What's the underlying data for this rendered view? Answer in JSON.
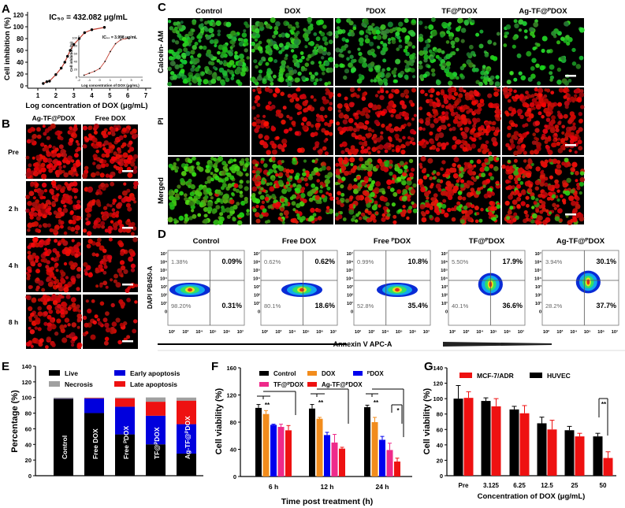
{
  "panel_letters": [
    "A",
    "B",
    "C",
    "D",
    "E",
    "F",
    "G"
  ],
  "microscopy": {
    "B": {
      "columns": [
        "Ag-TF@ᴾDOX",
        "Free DOX"
      ],
      "rows": [
        "Pre",
        "2 h",
        "4 h",
        "8 h"
      ]
    },
    "C": {
      "columns": [
        "Control",
        "DOX",
        "ᴾDOX",
        "TF@ᴾDOX",
        "Ag-TF@ᴾDOX"
      ],
      "rows": [
        "Calcein- AM",
        "PI",
        "Merged"
      ]
    }
  },
  "flow": {
    "xlabel": "Annexin V APC-A",
    "ylabel": "DAPI PB450-A",
    "x_ticks": [
      "10²",
      "10³",
      "10⁴",
      "10⁵",
      "10⁶",
      "10⁷"
    ],
    "y_ticks": [
      "10⁷",
      "10⁶",
      "10⁵",
      "10⁴",
      "10³",
      "10²",
      "10¹",
      "0"
    ],
    "plots": [
      {
        "title": "Control",
        "ul": "1.38%",
        "ur": "0.09%",
        "ll": "98.20%",
        "lr": "0.31%"
      },
      {
        "title": "Free DOX",
        "ul": "0.62%",
        "ur": "0.62%",
        "ll": "80.1%",
        "lr": "18.6%"
      },
      {
        "title": "Free ᴾDOX",
        "ul": "0.99%",
        "ur": "10.8%",
        "ll": "52.8%",
        "lr": "35.4%"
      },
      {
        "title": "TF@ᴾDOX",
        "ul": "5.50%",
        "ur": "17.9%",
        "ll": "40.1%",
        "lr": "36.6%"
      },
      {
        "title": "Ag-TF@ᴾDOX",
        "ul": "3.94%",
        "ur": "30.1%",
        "ll": "28.2%",
        "lr": "37.7%"
      }
    ]
  },
  "chart_data": [
    {
      "id": "A",
      "type": "line",
      "title": "IC₅₀ = 432.082 μg/mL",
      "xlabel": "Log concentration of DOX (μg/mL)",
      "ylabel": "Cell inhibition (%)",
      "xlim": [
        0.5,
        7
      ],
      "ylim": [
        0,
        120
      ],
      "x_ticks": [
        "1",
        "2",
        "3",
        "4",
        "5",
        "6",
        "7"
      ],
      "y_ticks": [
        "0",
        "20",
        "40",
        "60",
        "80",
        "100",
        "120"
      ],
      "x": [
        1.3,
        1.5,
        1.65,
        2.0,
        2.3,
        2.5,
        2.65,
        2.8,
        3.0,
        3.3,
        3.6,
        4.0,
        4.7
      ],
      "y": [
        4,
        7,
        8,
        19,
        30,
        40,
        50,
        60,
        70,
        80,
        90,
        95,
        99
      ],
      "color": "#c0392b",
      "inset": {
        "title": "IC₅₀ = 3.998 μg/mL",
        "xlabel": "Log concentration of DOX (μg/mL)",
        "ylabel": "Cell inhibition (%)",
        "xlim": [
          -2,
          4
        ],
        "ylim": [
          0,
          100
        ],
        "x_ticks": [
          "-2",
          "-1",
          "0",
          "1",
          "2",
          "3",
          "4"
        ],
        "y_ticks": [
          "0",
          "20",
          "40",
          "60",
          "80",
          "100"
        ],
        "x": [
          -1.5,
          -1.0,
          -0.5,
          0.0,
          0.5,
          1.0,
          1.5,
          2.0,
          2.7
        ],
        "y": [
          5,
          10,
          15,
          22,
          40,
          65,
          85,
          95,
          99
        ]
      }
    },
    {
      "id": "E",
      "type": "bar",
      "stacked": true,
      "ylabel": "Percentage (%)",
      "ylim": [
        0,
        140
      ],
      "y_ticks": [
        "0",
        "20",
        "40",
        "60",
        "80",
        "100",
        "120",
        "140"
      ],
      "categories": [
        "Control",
        "Free DOX",
        "Free ᴾDOX",
        "TF@ᴾDOX",
        "Ag-TF@ᴾDOX"
      ],
      "series": [
        {
          "name": "Live",
          "color": "#000000",
          "values": [
            98.2,
            80.1,
            52.8,
            40.1,
            28.2
          ]
        },
        {
          "name": "Early apoptosis",
          "color": "#0000dd",
          "values": [
            0.31,
            18.6,
            35.4,
            36.6,
            37.7
          ]
        },
        {
          "name": "Late apoptosis",
          "color": "#ee1111",
          "values": [
            0.09,
            0.62,
            10.8,
            17.9,
            30.1
          ]
        },
        {
          "name": "Necrosis",
          "color": "#a0a0a0",
          "values": [
            1.38,
            0.62,
            0.99,
            5.5,
            3.94
          ]
        }
      ],
      "legend": "top"
    },
    {
      "id": "F",
      "type": "bar",
      "xlabel": "Time post treatment (h)",
      "ylabel": "Cell viability (%)",
      "ylim": [
        0,
        160
      ],
      "y_ticks": [
        "0",
        "40",
        "80",
        "120",
        "160"
      ],
      "categories": [
        "6 h",
        "12 h",
        "24 h"
      ],
      "series": [
        {
          "name": "Control",
          "color": "#000000",
          "values": [
            101,
            100,
            102
          ],
          "errors": [
            5,
            6,
            3
          ]
        },
        {
          "name": "DOX",
          "color": "#f28c1c",
          "values": [
            92,
            85,
            80
          ],
          "errors": [
            5,
            2,
            7
          ]
        },
        {
          "name": "ᴾDOX",
          "color": "#0000ee",
          "values": [
            76,
            61,
            54
          ],
          "errors": [
            1,
            4,
            5
          ]
        },
        {
          "name": "TF@ᴾDOX",
          "color": "#ee2a8a",
          "values": [
            73,
            50,
            39
          ],
          "errors": [
            4,
            12,
            10
          ]
        },
        {
          "name": "Ag-TF@ᴾDOX",
          "color": "#ee1111",
          "values": [
            68,
            41,
            22
          ],
          "errors": [
            7,
            2,
            5
          ]
        }
      ],
      "significance": [
        "**",
        "**",
        "**",
        "*"
      ],
      "legend": "top"
    },
    {
      "id": "G",
      "type": "bar",
      "xlabel": "Concentration of DOX (μg/mL)",
      "ylabel": "Cell viability (%)",
      "ylim": [
        0,
        140
      ],
      "y_ticks": [
        "0",
        "20",
        "40",
        "60",
        "80",
        "100",
        "120",
        "140"
      ],
      "categories": [
        "Pre",
        "3.125",
        "6.25",
        "12.5",
        "25",
        "50"
      ],
      "series": [
        {
          "name": "HUVEC",
          "color": "#000000",
          "values": [
            100,
            97,
            86,
            68,
            59,
            51
          ],
          "errors": [
            17,
            4,
            4,
            8,
            5,
            4
          ]
        },
        {
          "name": "MCF-7/ADR",
          "color": "#ee1111",
          "values": [
            101,
            90,
            81,
            60,
            51,
            23
          ],
          "errors": [
            8,
            10,
            10,
            12,
            4,
            8
          ]
        }
      ],
      "legend_order": [
        "MCF-7/ADR",
        "HUVEC"
      ],
      "significance": [
        "**"
      ],
      "legend": "top"
    }
  ]
}
